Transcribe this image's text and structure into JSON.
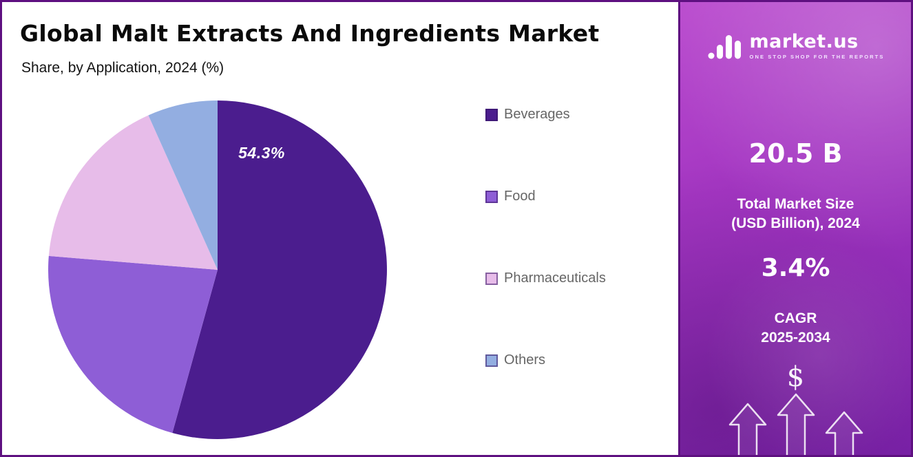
{
  "theme": {
    "frame-border": "#5e1080",
    "panel-top": "#bb4ecf",
    "panel-bottom": "#7c22aa"
  },
  "chart": {
    "title": "Global Malt Extracts And Ingredients Market",
    "subtitle": "Share, by Application, 2024 (%)",
    "chart_data": {
      "type": "pie",
      "categories": [
        "Beverages",
        "Food",
        "Pharmaceuticals",
        "Others"
      ],
      "values": [
        54.3,
        22.0,
        17.0,
        6.7
      ],
      "colors": [
        "#4b1d8e",
        "#8e5ed6",
        "#e7bce9",
        "#93aee1"
      ],
      "data_label": "54.3%",
      "data_label_slice": "Beverages",
      "data_label_color": "#ffffff",
      "start_angle": "top",
      "direction": "clockwise",
      "legend_position": "right"
    }
  },
  "sidebar": {
    "logo_text": "market.us",
    "logo_tagline": "ONE STOP SHOP FOR THE REPORTS",
    "market_size_value": "20.5 B",
    "market_size_label_line1": "Total Market Size",
    "market_size_label_line2": "(USD Billion), 2024",
    "cagr_value": "3.4%",
    "cagr_label_line1": "CAGR",
    "cagr_label_line2": "2025-2034",
    "dollar_symbol": "$"
  }
}
